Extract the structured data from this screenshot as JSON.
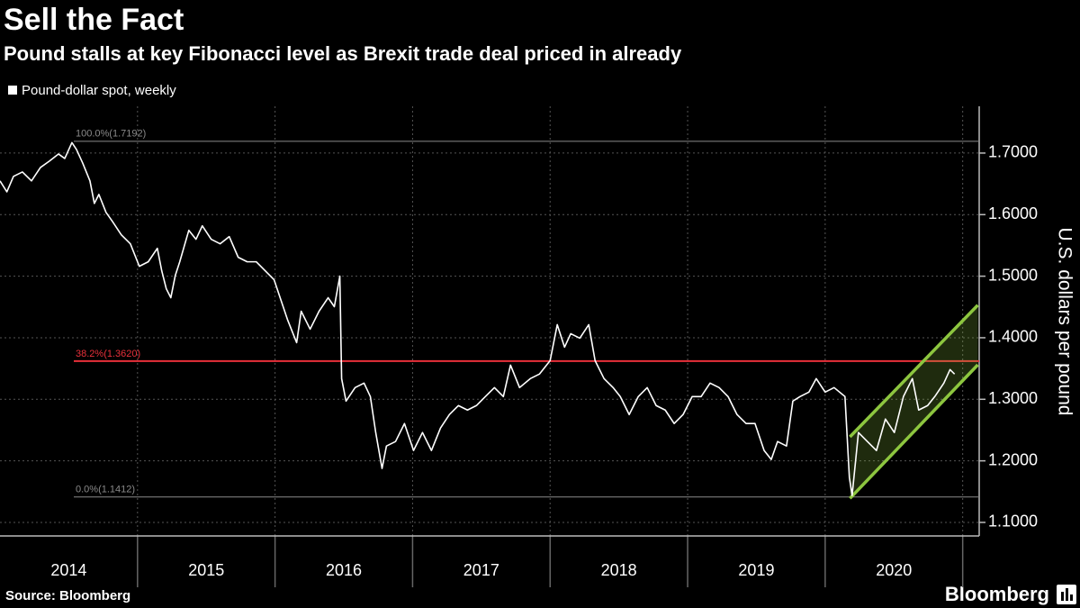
{
  "chart_data": {
    "type": "line",
    "title": "Sell the Fact",
    "subtitle": "Pound stalls at key Fibonacci level as Brexit trade deal priced in already",
    "y_label": "U.S. dollars per pound",
    "source": "Source: Bloomberg",
    "brand": "Bloomberg",
    "grid": true,
    "xlim": [
      2014,
      2021.12
    ],
    "ylim": [
      1.078,
      1.776
    ],
    "xticks": [
      {
        "value": 2014.5,
        "label": "2014"
      },
      {
        "value": 2015.5,
        "label": "2015"
      },
      {
        "value": 2016.5,
        "label": "2016"
      },
      {
        "value": 2017.5,
        "label": "2017"
      },
      {
        "value": 2018.5,
        "label": "2018"
      },
      {
        "value": 2019.5,
        "label": "2019"
      },
      {
        "value": 2020.5,
        "label": "2020"
      }
    ],
    "yticks": [
      {
        "value": 1.1,
        "label": "1.1000"
      },
      {
        "value": 1.2,
        "label": "1.2000"
      },
      {
        "value": 1.3,
        "label": "1.3000"
      },
      {
        "value": 1.4,
        "label": "1.4000"
      },
      {
        "value": 1.5,
        "label": "1.5000"
      },
      {
        "value": 1.6,
        "label": "1.6000"
      },
      {
        "value": 1.7,
        "label": "1.7000"
      }
    ],
    "hlines": [
      {
        "value": 1.7192,
        "label": "100.0%(1.7192)",
        "color": "#8a8a8a"
      },
      {
        "value": 1.362,
        "label": "38.2%(1.3620)",
        "color": "#e8303a"
      },
      {
        "value": 1.1412,
        "label": "0.0%(1.1412)",
        "color": "#8a8a8a"
      }
    ],
    "channel": {
      "x": [
        2020.18,
        2021.11
      ],
      "lower": [
        1.139,
        1.356
      ],
      "upper": [
        1.239,
        1.453
      ],
      "color": "#8dc63f"
    },
    "series": [
      {
        "name": "Pound-dollar spot, weekly",
        "color": "#ffffff",
        "x": [
          2014.0,
          2014.05,
          2014.098,
          2014.163,
          2014.229,
          2014.294,
          2014.359,
          2014.425,
          2014.471,
          2014.523,
          2014.556,
          2014.601,
          2014.654,
          2014.686,
          2014.719,
          2014.771,
          2014.817,
          2014.882,
          2014.948,
          2015.013,
          2015.078,
          2015.144,
          2015.176,
          2015.209,
          2015.242,
          2015.275,
          2015.307,
          2015.373,
          2015.425,
          2015.471,
          2015.536,
          2015.601,
          2015.667,
          2015.732,
          2015.797,
          2015.863,
          2015.928,
          2015.993,
          2016.059,
          2016.092,
          2016.157,
          2016.19,
          2016.255,
          2016.32,
          2016.386,
          2016.431,
          2016.471,
          2016.484,
          2016.516,
          2016.582,
          2016.647,
          2016.693,
          2016.732,
          2016.778,
          2016.81,
          2016.876,
          2016.941,
          2017.007,
          2017.072,
          2017.137,
          2017.203,
          2017.268,
          2017.333,
          2017.399,
          2017.464,
          2017.529,
          2017.595,
          2017.66,
          2017.712,
          2017.778,
          2017.856,
          2017.922,
          2018.0,
          2018.052,
          2018.105,
          2018.15,
          2018.216,
          2018.281,
          2018.327,
          2018.392,
          2018.458,
          2018.51,
          2018.575,
          2018.641,
          2018.706,
          2018.771,
          2018.837,
          2018.902,
          2018.967,
          2019.033,
          2019.098,
          2019.163,
          2019.229,
          2019.294,
          2019.359,
          2019.425,
          2019.49,
          2019.556,
          2019.608,
          2019.654,
          2019.719,
          2019.765,
          2019.817,
          2019.882,
          2019.935,
          2020.0,
          2020.065,
          2020.144,
          2020.176,
          2020.196,
          2020.242,
          2020.307,
          2020.373,
          2020.438,
          2020.503,
          2020.569,
          2020.634,
          2020.68,
          2020.745,
          2020.797,
          2020.863,
          2020.908,
          2020.941
        ],
        "values": [
          1.6548,
          1.637,
          1.6621,
          1.6693,
          1.6548,
          1.6766,
          1.6869,
          1.6985,
          1.6912,
          1.717,
          1.7058,
          1.6839,
          1.6548,
          1.6182,
          1.6328,
          1.6036,
          1.5891,
          1.5672,
          1.5526,
          1.5161,
          1.5234,
          1.5453,
          1.5088,
          1.4796,
          1.465,
          1.5015,
          1.5234,
          1.5745,
          1.5599,
          1.5818,
          1.5599,
          1.5526,
          1.5643,
          1.5307,
          1.5234,
          1.5234,
          1.5088,
          1.4942,
          1.4504,
          1.4285,
          1.392,
          1.4431,
          1.4139,
          1.4431,
          1.465,
          1.4504,
          1.5,
          1.3336,
          1.2971,
          1.319,
          1.3263,
          1.3044,
          1.246,
          1.1876,
          1.2241,
          1.2314,
          1.2606,
          1.2168,
          1.246,
          1.2168,
          1.2533,
          1.2752,
          1.2898,
          1.2825,
          1.2898,
          1.3044,
          1.319,
          1.3044,
          1.3555,
          1.319,
          1.3336,
          1.3409,
          1.3628,
          1.4212,
          1.3847,
          1.4066,
          1.3993,
          1.4212,
          1.3628,
          1.3336,
          1.319,
          1.3044,
          1.2752,
          1.3044,
          1.319,
          1.2898,
          1.2825,
          1.2606,
          1.2752,
          1.3044,
          1.3044,
          1.3263,
          1.319,
          1.3044,
          1.2752,
          1.2606,
          1.2606,
          1.2168,
          1.2022,
          1.2314,
          1.2241,
          1.2971,
          1.3044,
          1.3117,
          1.3336,
          1.3117,
          1.319,
          1.3044,
          1.173,
          1.1438,
          1.246,
          1.2314,
          1.2168,
          1.2679,
          1.246,
          1.3044,
          1.3336,
          1.2825,
          1.2898,
          1.3044,
          1.3263,
          1.3482,
          1.3409
        ]
      }
    ]
  }
}
